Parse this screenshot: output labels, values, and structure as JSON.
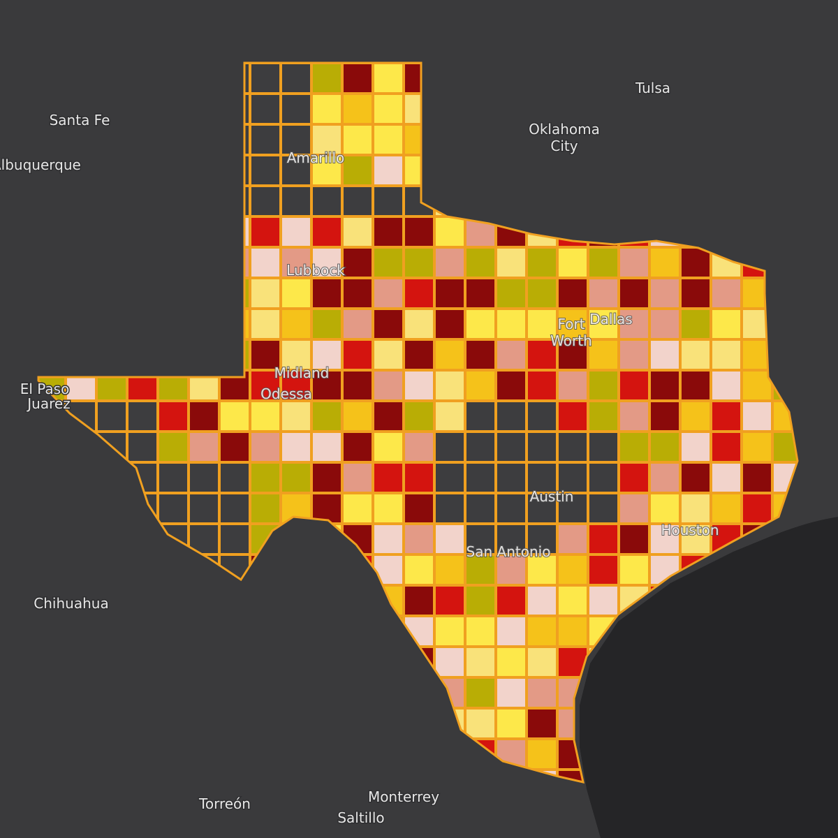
{
  "places": {
    "tulsa": "Tulsa",
    "santa_fe": "Santa Fe",
    "oklahoma_city": [
      "Oklahoma",
      "City"
    ],
    "albuquerque": "Albuquerque",
    "amarillo": "Amarillo",
    "lubbock": "Lubbock",
    "fort_worth": [
      "Fort",
      "Worth"
    ],
    "dallas": "Dallas",
    "midland": "Midland",
    "odessa": "Odessa",
    "el_paso": "El Paso",
    "juarez": "Juarez",
    "austin": "Austin",
    "san_antonio": "San Antonio",
    "houston": "Houston",
    "chihuahua": "Chihuahua",
    "torreon": "Torreón",
    "monterrey": "Monterrey",
    "saltillo": "Saltillo"
  }
}
